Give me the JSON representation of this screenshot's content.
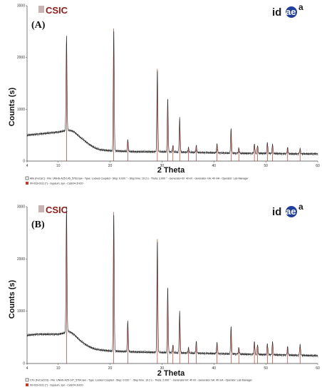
{
  "figure": {
    "logo_csic": "CSIC",
    "logo_idaea_id": "id",
    "logo_idaea_ae": "ae",
    "logo_idaea_sup": "a"
  },
  "chart_data": [
    {
      "type": "line",
      "panel_label": "(A)",
      "xlabel": "2 Theta",
      "ylabel": "Counts (s)",
      "xlim": [
        4,
        60
      ],
      "ylim": [
        0,
        3000
      ],
      "x_ticks": [
        4,
        10,
        20,
        30,
        40,
        50,
        60
      ],
      "y_ticks": [
        0,
        1000,
        2000,
        3000
      ],
      "grid": false,
      "colors": {
        "trace": "#2b2b2b",
        "reference": "#c0392b",
        "background": "#ffffff"
      },
      "background": [
        [
          4,
          500
        ],
        [
          6,
          520
        ],
        [
          8,
          540
        ],
        [
          10,
          560
        ],
        [
          11,
          580
        ],
        [
          12,
          600
        ],
        [
          13,
          570
        ],
        [
          14,
          480
        ],
        [
          15,
          400
        ],
        [
          16,
          320
        ],
        [
          17,
          260
        ],
        [
          18,
          220
        ],
        [
          20,
          200
        ],
        [
          25,
          180
        ],
        [
          30,
          180
        ],
        [
          35,
          170
        ],
        [
          40,
          160
        ],
        [
          45,
          150
        ],
        [
          50,
          150
        ],
        [
          55,
          140
        ],
        [
          60,
          140
        ]
      ],
      "peaks": [
        {
          "x": 11.6,
          "y": 2420
        },
        {
          "x": 20.7,
          "y": 2560
        },
        {
          "x": 23.4,
          "y": 420
        },
        {
          "x": 29.1,
          "y": 1780
        },
        {
          "x": 31.1,
          "y": 1200
        },
        {
          "x": 32.1,
          "y": 300
        },
        {
          "x": 33.4,
          "y": 820
        },
        {
          "x": 35.1,
          "y": 260
        },
        {
          "x": 36.6,
          "y": 300
        },
        {
          "x": 40.6,
          "y": 330
        },
        {
          "x": 43.3,
          "y": 620
        },
        {
          "x": 44.8,
          "y": 250
        },
        {
          "x": 47.8,
          "y": 330
        },
        {
          "x": 48.4,
          "y": 300
        },
        {
          "x": 50.3,
          "y": 360
        },
        {
          "x": 51.3,
          "y": 330
        },
        {
          "x": 54.2,
          "y": 260
        },
        {
          "x": 56.6,
          "y": 240
        }
      ],
      "legend": [
        {
          "name": "Alfe (FeCaC) - File: UNHS-A25-145_5763.raw - Type: Locked Coupled - Step: 0.020 ° - Step time: 19.2 s - Theta: 2.000 ° - Generator kV: 40 kV - Generator mA: 40 mA - Operator: Lab Manager",
          "color": "#2b2b2b"
        },
        {
          "name": "00-033-0311 (*) - Gypsum, syn - CaSO4·2H2O",
          "color": "#c0392b"
        }
      ]
    },
    {
      "type": "line",
      "panel_label": "(B)",
      "xlabel": "2 Theta",
      "ylabel": "Counts (s)",
      "xlim": [
        4,
        60
      ],
      "ylim": [
        0,
        3000
      ],
      "x_ticks": [
        4,
        10,
        20,
        30,
        40,
        50,
        60
      ],
      "y_ticks": [
        0,
        1000,
        2000,
        3000
      ],
      "grid": false,
      "colors": {
        "trace": "#2b2b2b",
        "reference": "#c0392b",
        "background": "#ffffff"
      },
      "background": [
        [
          4,
          540
        ],
        [
          6,
          560
        ],
        [
          8,
          560
        ],
        [
          10,
          560
        ],
        [
          11,
          580
        ],
        [
          12,
          620
        ],
        [
          13,
          560
        ],
        [
          14,
          460
        ],
        [
          15,
          380
        ],
        [
          16,
          320
        ],
        [
          17,
          280
        ],
        [
          18,
          260
        ],
        [
          20,
          240
        ],
        [
          25,
          220
        ],
        [
          30,
          210
        ],
        [
          35,
          200
        ],
        [
          40,
          190
        ],
        [
          45,
          180
        ],
        [
          50,
          170
        ],
        [
          55,
          160
        ],
        [
          60,
          150
        ]
      ],
      "peaks": [
        {
          "x": 11.6,
          "y": 3000
        },
        {
          "x": 20.7,
          "y": 2900
        },
        {
          "x": 23.4,
          "y": 820
        },
        {
          "x": 29.1,
          "y": 2380
        },
        {
          "x": 31.1,
          "y": 1450
        },
        {
          "x": 32.1,
          "y": 350
        },
        {
          "x": 33.4,
          "y": 980
        },
        {
          "x": 35.1,
          "y": 300
        },
        {
          "x": 36.6,
          "y": 420
        },
        {
          "x": 40.6,
          "y": 400
        },
        {
          "x": 43.3,
          "y": 700
        },
        {
          "x": 44.8,
          "y": 300
        },
        {
          "x": 47.8,
          "y": 420
        },
        {
          "x": 48.4,
          "y": 360
        },
        {
          "x": 50.3,
          "y": 380
        },
        {
          "x": 51.3,
          "y": 420
        },
        {
          "x": 54.2,
          "y": 320
        },
        {
          "x": 56.6,
          "y": 360
        }
      ],
      "legend": [
        {
          "name": "CFs (FeCaCO3) - File: UNHS-A25-147_5764.raw - Type: Locked Coupled - Step: 0.020 ° - Step time: 19.2 s - Theta: 2.000 ° - Generator kV: 40 kV - Generator mA: 40 mA - Operator: Lab Manager",
          "color": "#2b2b2b"
        },
        {
          "name": "00-033-0311 (*) - Gypsum, syn - CaSO4·2H2O",
          "color": "#c0392b"
        }
      ]
    }
  ]
}
